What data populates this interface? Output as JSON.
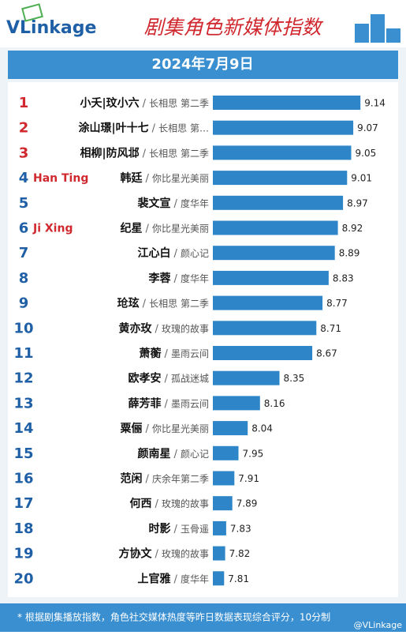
{
  "header": {
    "logo": "VLinkage",
    "title": "剧集角色新媒体指数",
    "date": "2024年7月9日"
  },
  "chart_data": {
    "type": "bar",
    "ranks": [
      1,
      2,
      3,
      4,
      5,
      6,
      7,
      8,
      9,
      10,
      11,
      12,
      13,
      14,
      15,
      16,
      17,
      18,
      19,
      20
    ],
    "categories": [
      "小夭|玟小六",
      "涂山璟|叶十七",
      "相柳|防风邶",
      "韩廷",
      "裴文宣",
      "纪星",
      "江心白",
      "李蓉",
      "玱玹",
      "黄亦玫",
      "萧蘅",
      "欧孝安",
      "薛芳菲",
      "粟俪",
      "颜南星",
      "范闲",
      "何西",
      "时影",
      "方协文",
      "上官雅"
    ],
    "shows": [
      "长相思 第二季",
      "长相思 第…",
      "长相思 第二季",
      "你比星光美丽",
      "度华年",
      "你比星光美丽",
      "颜心记",
      "度华年",
      "长相思 第二季",
      "玫瑰的故事",
      "墨雨云间",
      "孤战迷城",
      "墨雨云间",
      "你比星光美丽",
      "颜心记",
      "庆余年第二季",
      "玫瑰的故事",
      "玉骨遥",
      "玫瑰的故事",
      "度华年"
    ],
    "notes": [
      null,
      null,
      null,
      "Han Ting",
      null,
      "Ji Xing",
      null,
      null,
      null,
      null,
      null,
      null,
      null,
      null,
      null,
      null,
      null,
      null,
      null,
      null
    ],
    "values": [
      9.14,
      9.07,
      9.05,
      9.01,
      8.97,
      8.92,
      8.89,
      8.83,
      8.77,
      8.71,
      8.67,
      8.35,
      8.16,
      8.04,
      7.95,
      7.91,
      7.89,
      7.83,
      7.82,
      7.81
    ],
    "xlim": [
      7.7,
      9.2
    ],
    "color": "#2e86c8"
  },
  "footer": {
    "note": "* 根据剧集播放指数，角色社交媒体热度等昨日数据表现综合评分，10分制",
    "watermark": "@VLinkage"
  }
}
